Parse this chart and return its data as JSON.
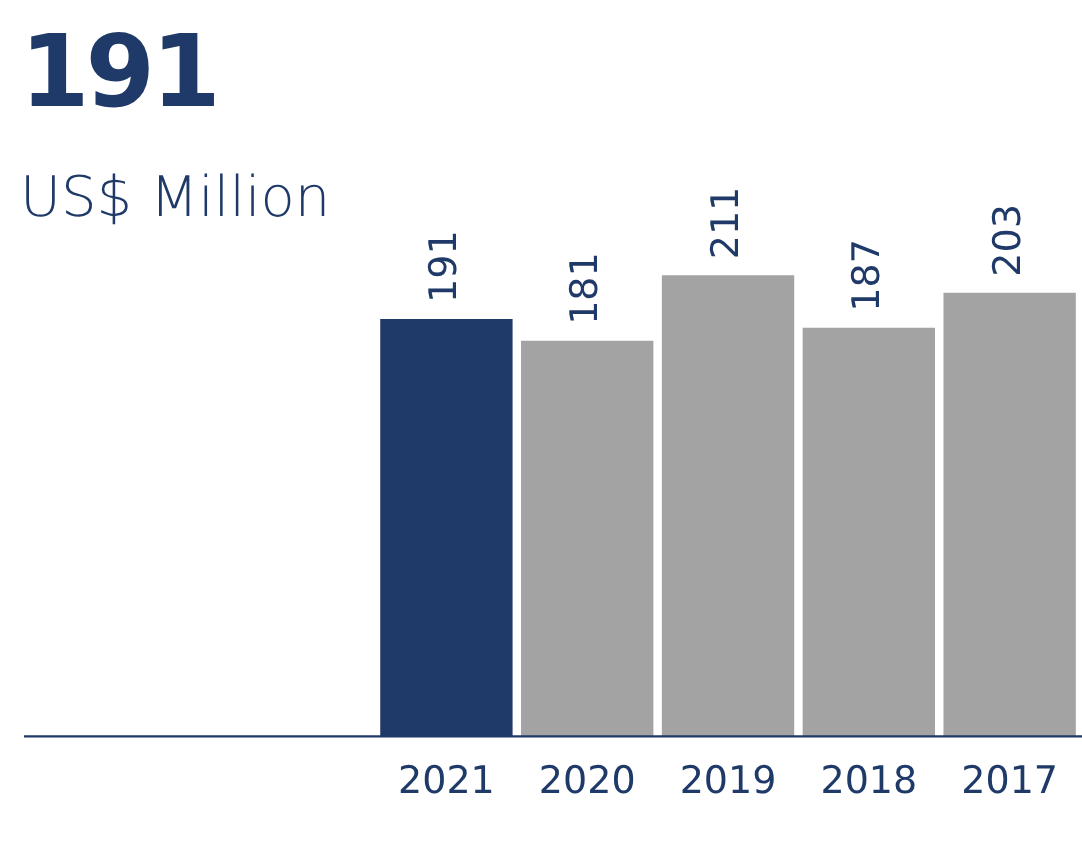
{
  "chart_data": {
    "type": "bar",
    "title": "191",
    "subtitle": "US$ Million",
    "categories": [
      "2021",
      "2020",
      "2019",
      "2018",
      "2017"
    ],
    "values": [
      191,
      181,
      211,
      187,
      203
    ],
    "colors": [
      "#1f3a68",
      "#a3a3a3",
      "#a3a3a3",
      "#a3a3a3",
      "#a3a3a3"
    ],
    "data_labels": true,
    "grid": false,
    "legend": false
  }
}
